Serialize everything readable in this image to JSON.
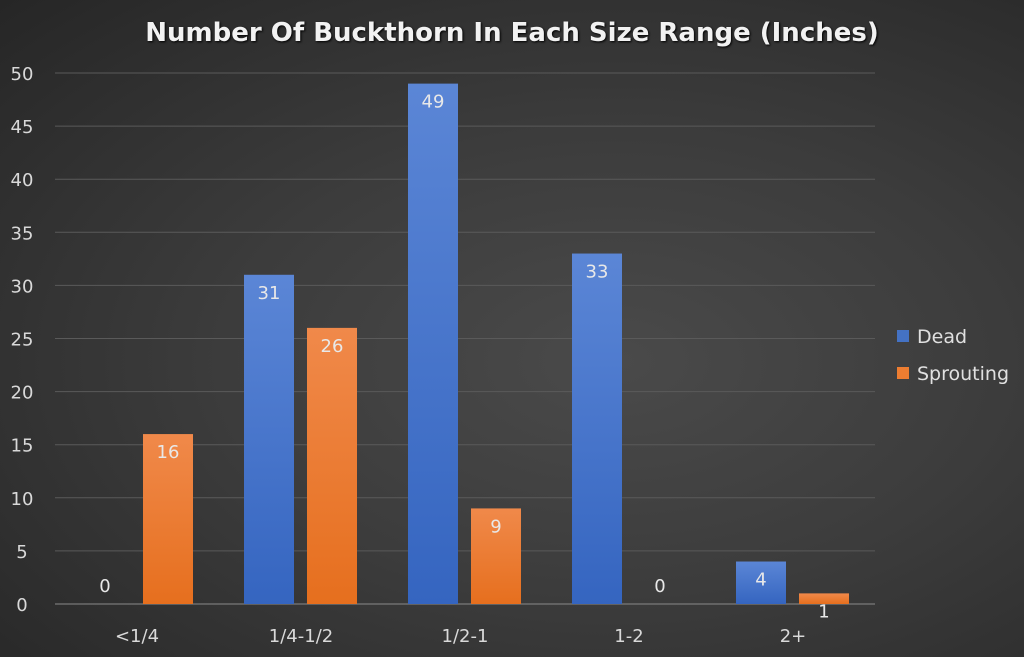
{
  "chart_data": {
    "type": "bar",
    "title": "Number Of Buckthorn In Each Size Range (Inches)",
    "xlabel": "",
    "ylabel": "",
    "categories": [
      "<1/4",
      "1/4-1/2",
      "1/2-1",
      "1-2",
      "2+"
    ],
    "series": [
      {
        "name": "Dead",
        "values": [
          0,
          31,
          49,
          33,
          4
        ],
        "color": "#4472c4"
      },
      {
        "name": "Sprouting",
        "values": [
          16,
          26,
          9,
          0,
          1
        ],
        "color": "#ed7d31"
      }
    ],
    "ylim": [
      0,
      50
    ],
    "yticks": [
      0,
      5,
      10,
      15,
      20,
      25,
      30,
      35,
      40,
      45,
      50
    ],
    "grid": true,
    "data_labels": true,
    "legend": "right"
  }
}
